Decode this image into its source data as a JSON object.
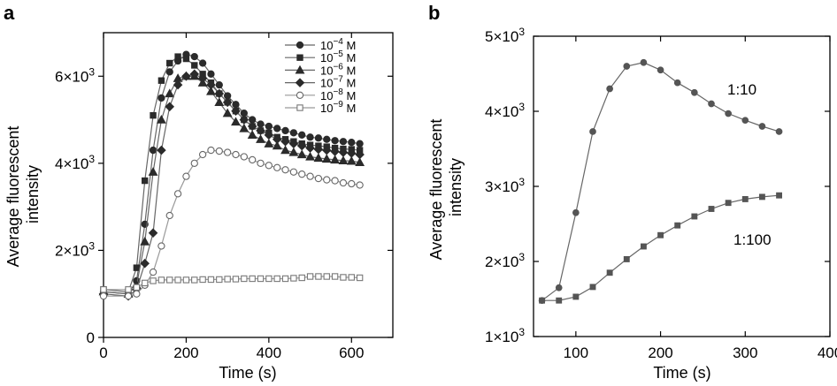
{
  "chart_data": [
    {
      "panel": "a",
      "type": "line",
      "xlabel": "Time (s)",
      "ylabel": "Average fluorescent intensity",
      "xlim": [
        0,
        700
      ],
      "ylim": [
        0,
        7000
      ],
      "xticks": [
        {
          "v": 0,
          "label": "0"
        },
        {
          "v": 200,
          "label": "200"
        },
        {
          "v": 400,
          "label": "400"
        },
        {
          "v": 600,
          "label": "600"
        }
      ],
      "yticks": [
        {
          "v": 0,
          "label": "0",
          "base": "0",
          "exp": ""
        },
        {
          "v": 2000,
          "label": "2×10^3",
          "base": "2×10",
          "exp": "3"
        },
        {
          "v": 4000,
          "label": "4×10^3",
          "base": "4×10",
          "exp": "3"
        },
        {
          "v": 6000,
          "label": "6×10^3",
          "base": "6×10",
          "exp": "3"
        }
      ],
      "legend_position": "top-right",
      "series": [
        {
          "name": "10^-4 M",
          "base": "10",
          "exp": "−4",
          "unit": "M",
          "marker": "circle",
          "filled": true,
          "color": "#2b2b2b",
          "x": [
            0,
            60,
            80,
            100,
            120,
            140,
            160,
            180,
            200,
            220,
            240,
            260,
            280,
            300,
            320,
            340,
            360,
            380,
            400,
            420,
            440,
            460,
            480,
            500,
            520,
            540,
            560,
            580,
            600,
            620
          ],
          "y": [
            1050,
            1000,
            1300,
            2600,
            4300,
            5500,
            6100,
            6350,
            6500,
            6450,
            6300,
            6050,
            5800,
            5550,
            5350,
            5150,
            5000,
            4900,
            4850,
            4800,
            4750,
            4700,
            4650,
            4600,
            4580,
            4550,
            4520,
            4500,
            4480,
            4450
          ]
        },
        {
          "name": "10^-5 M",
          "base": "10",
          "exp": "−5",
          "unit": "M",
          "marker": "square",
          "filled": true,
          "color": "#2b2b2b",
          "x": [
            0,
            60,
            80,
            100,
            120,
            140,
            160,
            180,
            200,
            220,
            240,
            260,
            280,
            300,
            320,
            340,
            360,
            380,
            400,
            420,
            440,
            460,
            480,
            500,
            520,
            540,
            560,
            580,
            600,
            620
          ],
          "y": [
            1100,
            1050,
            1600,
            3600,
            5100,
            5900,
            6300,
            6450,
            6400,
            6250,
            6050,
            5850,
            5600,
            5400,
            5200,
            5000,
            4850,
            4750,
            4700,
            4600,
            4550,
            4500,
            4450,
            4420,
            4400,
            4380,
            4350,
            4330,
            4320,
            4300
          ]
        },
        {
          "name": "10^-6 M",
          "base": "10",
          "exp": "−6",
          "unit": "M",
          "marker": "triangle",
          "filled": true,
          "color": "#2b2b2b",
          "x": [
            0,
            60,
            80,
            100,
            120,
            140,
            160,
            180,
            200,
            220,
            240,
            260,
            280,
            300,
            320,
            340,
            360,
            380,
            400,
            420,
            440,
            460,
            480,
            500,
            520,
            540,
            560,
            580,
            600,
            620
          ],
          "y": [
            1050,
            1000,
            1200,
            2200,
            3800,
            5000,
            5600,
            5950,
            6000,
            6000,
            5850,
            5650,
            5400,
            5150,
            4950,
            4800,
            4650,
            4550,
            4450,
            4400,
            4300,
            4250,
            4200,
            4150,
            4120,
            4100,
            4080,
            4060,
            4050,
            4020
          ]
        },
        {
          "name": "10^-7 M",
          "base": "10",
          "exp": "−7",
          "unit": "M",
          "marker": "diamond",
          "filled": true,
          "color": "#2b2b2b",
          "x": [
            0,
            60,
            80,
            100,
            120,
            140,
            160,
            180,
            200,
            220,
            240,
            260,
            280,
            300,
            320,
            340,
            360,
            380,
            400,
            420,
            440,
            460,
            480,
            500,
            520,
            540,
            560,
            580,
            600,
            620
          ],
          "y": [
            1000,
            950,
            1100,
            1700,
            2400,
            4300,
            5300,
            5800,
            6000,
            6050,
            5950,
            5800,
            5600,
            5400,
            5200,
            5000,
            4850,
            4750,
            4650,
            4550,
            4500,
            4450,
            4400,
            4350,
            4320,
            4300,
            4270,
            4250,
            4230,
            4200
          ]
        },
        {
          "name": "10^-8 M",
          "base": "10",
          "exp": "−8",
          "unit": "M",
          "marker": "circle",
          "filled": false,
          "color": "#666666",
          "x": [
            0,
            60,
            80,
            100,
            120,
            140,
            160,
            180,
            200,
            220,
            240,
            260,
            280,
            300,
            320,
            340,
            360,
            380,
            400,
            420,
            440,
            460,
            480,
            500,
            520,
            540,
            560,
            580,
            600,
            620
          ],
          "y": [
            950,
            950,
            1000,
            1200,
            1500,
            2100,
            2800,
            3300,
            3700,
            4000,
            4200,
            4300,
            4280,
            4250,
            4200,
            4150,
            4080,
            4000,
            3950,
            3900,
            3850,
            3800,
            3750,
            3700,
            3650,
            3620,
            3600,
            3550,
            3530,
            3500
          ]
        },
        {
          "name": "10^-9 M",
          "base": "10",
          "exp": "−9",
          "unit": "M",
          "marker": "square",
          "filled": false,
          "color": "#777777",
          "x": [
            0,
            60,
            80,
            100,
            120,
            140,
            160,
            180,
            200,
            220,
            240,
            260,
            280,
            300,
            320,
            340,
            360,
            380,
            400,
            420,
            440,
            460,
            480,
            500,
            520,
            540,
            560,
            580,
            600,
            620
          ],
          "y": [
            1100,
            1100,
            1150,
            1250,
            1300,
            1320,
            1320,
            1320,
            1320,
            1320,
            1330,
            1330,
            1330,
            1340,
            1340,
            1350,
            1350,
            1350,
            1350,
            1350,
            1350,
            1360,
            1370,
            1400,
            1400,
            1400,
            1400,
            1380,
            1380,
            1370
          ]
        }
      ]
    },
    {
      "panel": "b",
      "type": "line",
      "xlabel": "Time (s)",
      "ylabel": "Average fluorescent intensity",
      "xlim": [
        50,
        400
      ],
      "ylim": [
        1000,
        5000
      ],
      "xticks": [
        {
          "v": 100,
          "label": "100"
        },
        {
          "v": 200,
          "label": "200"
        },
        {
          "v": 300,
          "label": "300"
        },
        {
          "v": 400,
          "label": "400"
        }
      ],
      "yticks": [
        {
          "v": 1000,
          "label": "1×10^3",
          "base": "1×10",
          "exp": "3"
        },
        {
          "v": 2000,
          "label": "2×10^3",
          "base": "2×10",
          "exp": "3"
        },
        {
          "v": 3000,
          "label": "3×10^3",
          "base": "3×10",
          "exp": "3"
        },
        {
          "v": 4000,
          "label": "4×10^3",
          "base": "4×10",
          "exp": "3"
        },
        {
          "v": 5000,
          "label": "5×10^3",
          "base": "5×10",
          "exp": "3"
        }
      ],
      "series": [
        {
          "name": "1:10",
          "marker": "circle",
          "filled": true,
          "color": "#555555",
          "x": [
            60,
            80,
            100,
            120,
            140,
            160,
            180,
            200,
            220,
            240,
            260,
            280,
            300,
            320,
            340
          ],
          "y": [
            1480,
            1650,
            2650,
            3730,
            4300,
            4600,
            4650,
            4550,
            4380,
            4250,
            4100,
            3970,
            3880,
            3800,
            3730
          ]
        },
        {
          "name": "1:100",
          "marker": "square",
          "filled": true,
          "color": "#555555",
          "x": [
            60,
            80,
            100,
            120,
            140,
            160,
            180,
            200,
            220,
            240,
            260,
            280,
            300,
            320,
            340
          ],
          "y": [
            1480,
            1480,
            1530,
            1660,
            1850,
            2030,
            2200,
            2350,
            2480,
            2600,
            2700,
            2780,
            2830,
            2860,
            2880
          ]
        }
      ],
      "annotations": [
        {
          "text": "1:10",
          "series": "1:10"
        },
        {
          "text": "1:100",
          "series": "1:100"
        }
      ]
    }
  ],
  "panel_labels": [
    "a",
    "b"
  ]
}
